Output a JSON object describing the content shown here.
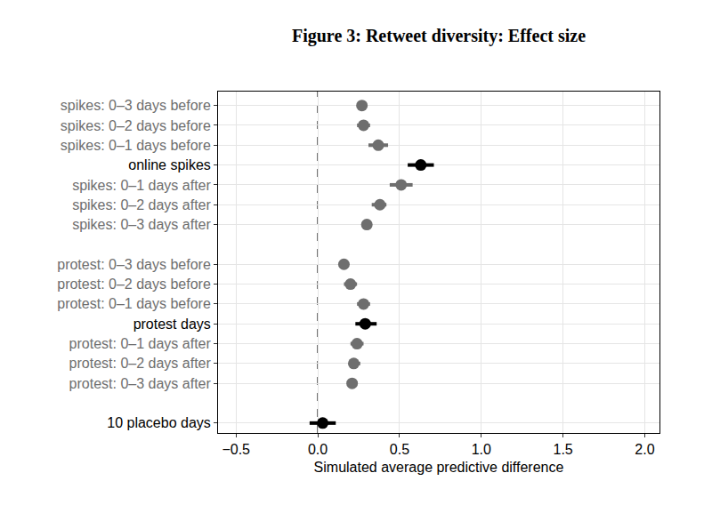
{
  "chart_data": {
    "type": "dot_whisker",
    "title": "Figure 3: Retweet diversity: Effect size",
    "x_label": "Simulated average predictive difference",
    "orientation": "horizontal",
    "categories": [
      "spikes: 0–3 days before",
      "spikes: 0–2 days before",
      "spikes: 0–1 days before",
      "online spikes",
      "spikes: 0–1 days after",
      "spikes: 0–2 days after",
      "spikes: 0–3 days after",
      null,
      "protest: 0–3 days before",
      "protest: 0–2 days before",
      "protest: 0–1 days before",
      "protest days",
      "protest: 0–1 days after",
      "protest: 0–2 days after",
      "protest: 0–3 days after",
      null,
      "10 placebo days"
    ],
    "values": [
      0.27,
      0.28,
      0.37,
      0.63,
      0.51,
      0.38,
      0.3,
      null,
      0.16,
      0.2,
      0.28,
      0.29,
      0.24,
      0.22,
      0.21,
      null,
      0.03
    ],
    "lower": [
      0.24,
      0.24,
      0.31,
      0.55,
      0.44,
      0.33,
      0.27,
      null,
      0.13,
      0.16,
      0.24,
      0.23,
      0.2,
      0.19,
      0.18,
      null,
      -0.05
    ],
    "upper": [
      0.3,
      0.32,
      0.43,
      0.71,
      0.58,
      0.42,
      0.33,
      null,
      0.19,
      0.24,
      0.32,
      0.36,
      0.28,
      0.26,
      0.24,
      null,
      0.11
    ],
    "colors": [
      "#6e6e6e",
      "#6e6e6e",
      "#6e6e6e",
      "#000000",
      "#6e6e6e",
      "#6e6e6e",
      "#6e6e6e",
      null,
      "#6e6e6e",
      "#6e6e6e",
      "#6e6e6e",
      "#000000",
      "#6e6e6e",
      "#6e6e6e",
      "#6e6e6e",
      null,
      "#000000"
    ],
    "xlim": [
      -0.61,
      2.09
    ],
    "xticks": [
      {
        "value": -0.5,
        "label": "−0.5"
      },
      {
        "value": 0,
        "label": "0.0"
      },
      0.5,
      {
        "value": 1,
        "label": "1.0"
      },
      1.5,
      {
        "value": 2,
        "label": "2.0"
      }
    ],
    "vline": 0,
    "grid": true
  }
}
